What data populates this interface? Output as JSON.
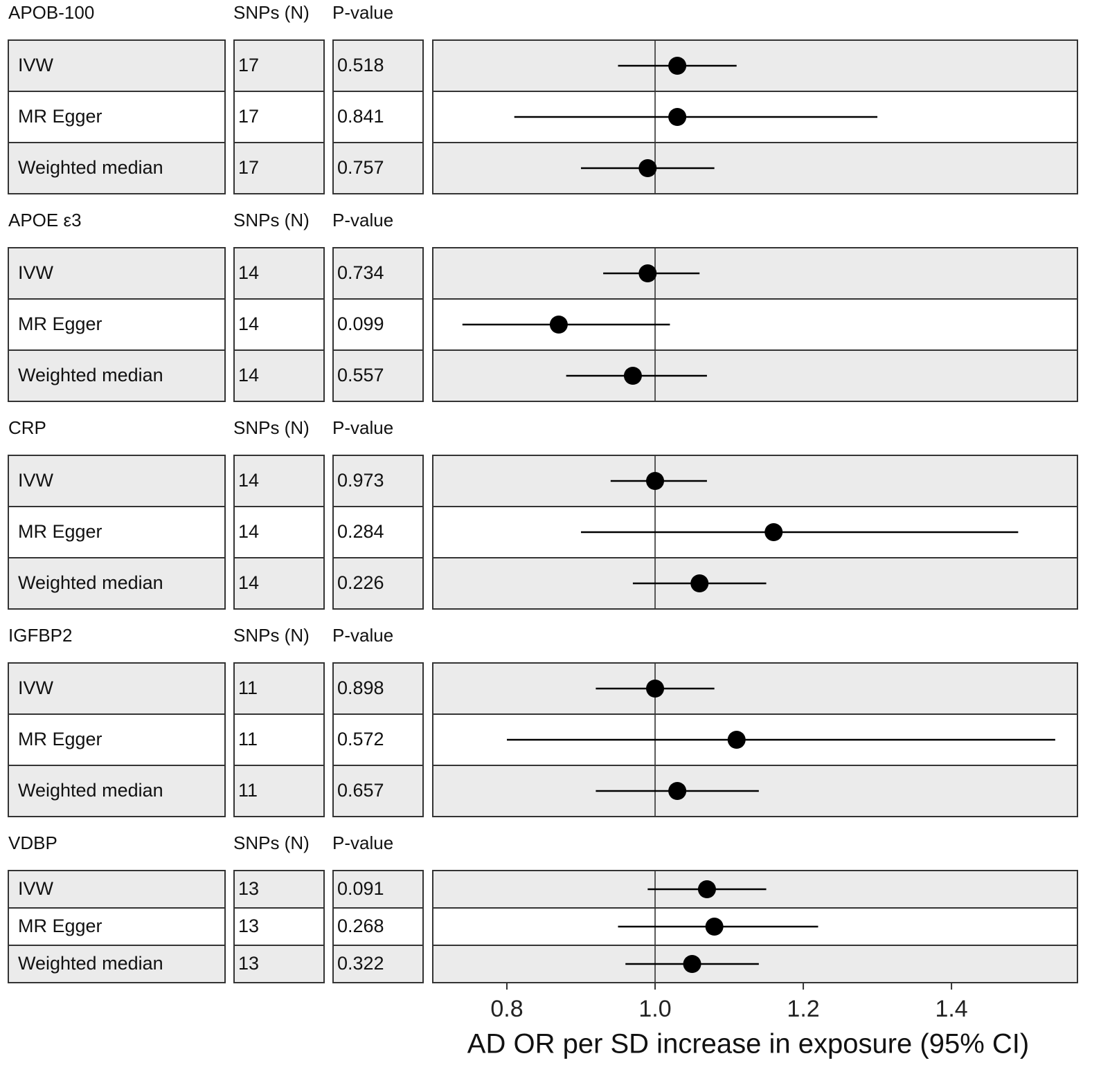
{
  "chart_data": {
    "type": "forest",
    "xlabel": "AD OR per SD increase in exposure (95% CI)",
    "x_ticks": [
      "0.8",
      "1.0",
      "1.2",
      "1.4"
    ],
    "x_tick_values": [
      0.8,
      1.0,
      1.2,
      1.4
    ],
    "xlim": [
      0.7,
      1.57
    ],
    "reference_line": 1.0,
    "column_headers": {
      "snps": "SNPs (N)",
      "pvalue": "P-value"
    },
    "colors": {
      "shaded_row": "#ebebeb",
      "plain_row": "#ffffff",
      "border": "#333333",
      "point": "#000000"
    },
    "groups": [
      {
        "name": "APOB-100",
        "rows": [
          {
            "method": "IVW",
            "snps": "17",
            "pvalue": "0.518",
            "or": 1.03,
            "lo": 0.95,
            "hi": 1.11
          },
          {
            "method": "MR Egger",
            "snps": "17",
            "pvalue": "0.841",
            "or": 1.03,
            "lo": 0.81,
            "hi": 1.3
          },
          {
            "method": "Weighted median",
            "snps": "17",
            "pvalue": "0.757",
            "or": 0.99,
            "lo": 0.9,
            "hi": 1.08
          }
        ]
      },
      {
        "name": "APOE ε3",
        "rows": [
          {
            "method": "IVW",
            "snps": "14",
            "pvalue": "0.734",
            "or": 0.99,
            "lo": 0.93,
            "hi": 1.06
          },
          {
            "method": "MR Egger",
            "snps": "14",
            "pvalue": "0.099",
            "or": 0.87,
            "lo": 0.74,
            "hi": 1.02
          },
          {
            "method": "Weighted median",
            "snps": "14",
            "pvalue": "0.557",
            "or": 0.97,
            "lo": 0.88,
            "hi": 1.07
          }
        ]
      },
      {
        "name": "CRP",
        "rows": [
          {
            "method": "IVW",
            "snps": "14",
            "pvalue": "0.973",
            "or": 1.0,
            "lo": 0.94,
            "hi": 1.07
          },
          {
            "method": "MR Egger",
            "snps": "14",
            "pvalue": "0.284",
            "or": 1.16,
            "lo": 0.9,
            "hi": 1.49
          },
          {
            "method": "Weighted median",
            "snps": "14",
            "pvalue": "0.226",
            "or": 1.06,
            "lo": 0.97,
            "hi": 1.15
          }
        ]
      },
      {
        "name": "IGFBP2",
        "rows": [
          {
            "method": "IVW",
            "snps": "11",
            "pvalue": "0.898",
            "or": 1.0,
            "lo": 0.92,
            "hi": 1.08
          },
          {
            "method": "MR Egger",
            "snps": "11",
            "pvalue": "0.572",
            "or": 1.11,
            "lo": 0.8,
            "hi": 1.54
          },
          {
            "method": "Weighted median",
            "snps": "11",
            "pvalue": "0.657",
            "or": 1.03,
            "lo": 0.92,
            "hi": 1.14
          }
        ]
      },
      {
        "name": "VDBP",
        "rows": [
          {
            "method": "IVW",
            "snps": "13",
            "pvalue": "0.091",
            "or": 1.07,
            "lo": 0.99,
            "hi": 1.15
          },
          {
            "method": "MR Egger",
            "snps": "13",
            "pvalue": "0.268",
            "or": 1.08,
            "lo": 0.95,
            "hi": 1.22
          },
          {
            "method": "Weighted median",
            "snps": "13",
            "pvalue": "0.322",
            "or": 1.05,
            "lo": 0.96,
            "hi": 1.14
          }
        ]
      }
    ]
  }
}
